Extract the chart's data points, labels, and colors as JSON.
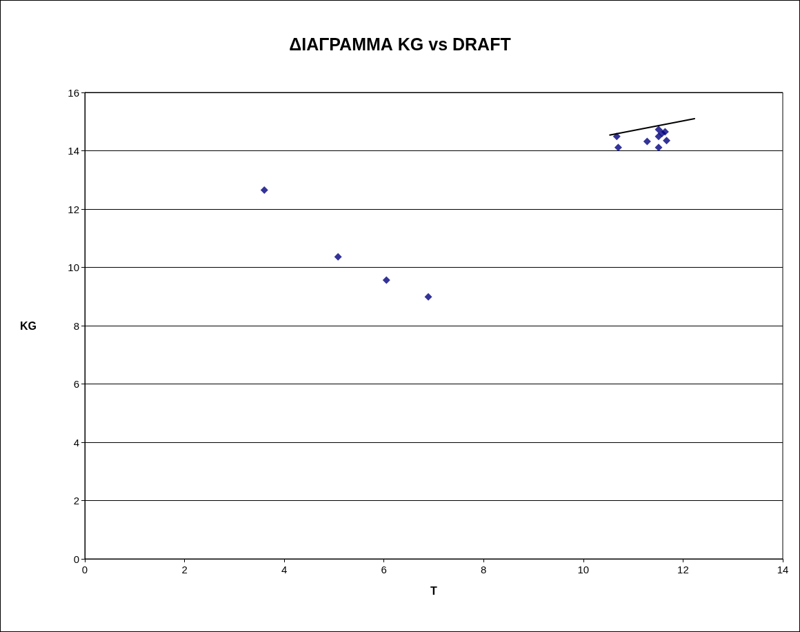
{
  "chart_data": {
    "type": "scatter",
    "title": "ΔΙΑΓΡΑΜΜΑ KG vs DRAFT",
    "xlabel": "T",
    "ylabel": "KG",
    "series": [
      {
        "color": "#000080",
        "marker": "diamond",
        "x": [
          3.6,
          5.08,
          6.05,
          6.89,
          10.67,
          10.7,
          11.28,
          11.51,
          11.51,
          11.51,
          11.58,
          11.64,
          11.67
        ],
        "values": [
          12.65,
          10.36,
          9.56,
          8.99,
          14.49,
          14.11,
          14.32,
          14.11,
          14.49,
          14.73,
          14.6,
          14.65,
          14.35
        ]
      },
      {
        "type": "line",
        "color": "#000000",
        "marker": "none",
        "x": [
          10.53,
          12.23
        ],
        "values": [
          14.54,
          15.1
        ]
      }
    ],
    "xlim": [
      0,
      14
    ],
    "xticks": [
      0,
      2,
      4,
      6,
      8,
      10,
      12,
      14
    ],
    "ylim": [
      0,
      16
    ],
    "yticks": [
      0,
      2,
      4,
      6,
      8,
      10,
      12,
      14,
      16
    ],
    "grid": "y"
  }
}
